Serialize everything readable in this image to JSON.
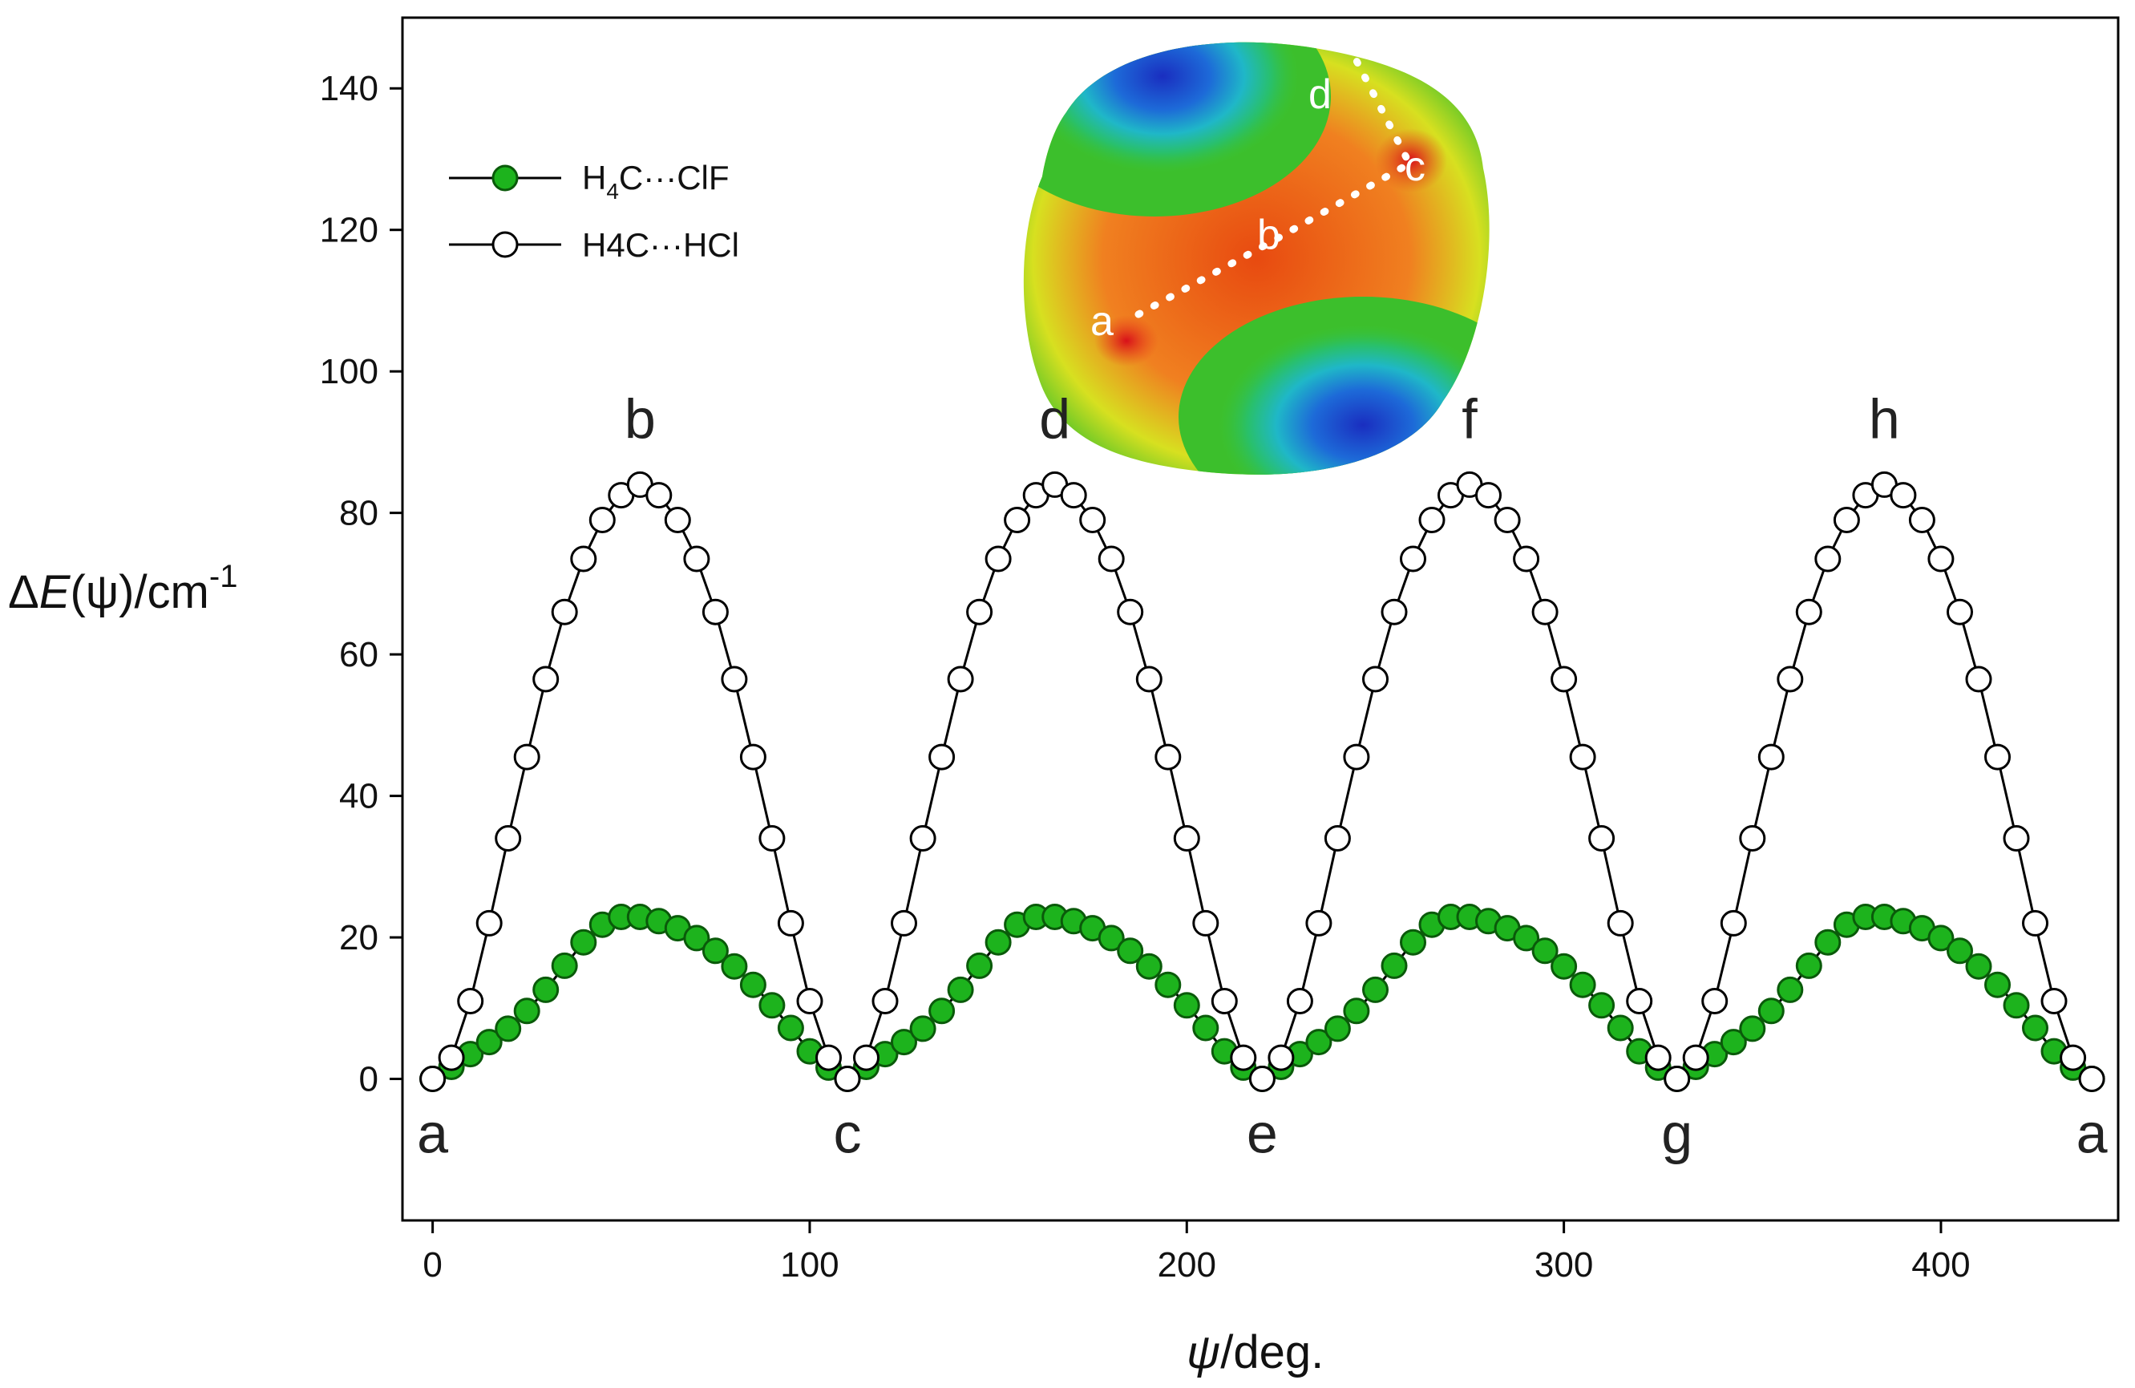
{
  "chart_data": {
    "type": "line",
    "title": "",
    "xlabel": "ψ/deg.",
    "ylabel": "ΔE(ψ)/cm-1",
    "xlim": [
      -8,
      447
    ],
    "ylim": [
      -20,
      150
    ],
    "xticks": [
      0,
      100,
      200,
      300,
      400
    ],
    "yticks": [
      0,
      20,
      40,
      60,
      80,
      100,
      120,
      140
    ],
    "grid": false,
    "legend": "top-left",
    "x": [
      0,
      5,
      10,
      15,
      20,
      25,
      30,
      35,
      40,
      45,
      50,
      55,
      60,
      65,
      70,
      75,
      80,
      85,
      90,
      95,
      100,
      105,
      110,
      115,
      120,
      125,
      130,
      135,
      140,
      145,
      150,
      155,
      160,
      165,
      170,
      175,
      180,
      185,
      190,
      195,
      200,
      205,
      210,
      215,
      220,
      225,
      230,
      235,
      240,
      245,
      250,
      255,
      260,
      265,
      270,
      275,
      280,
      285,
      290,
      295,
      300,
      305,
      310,
      315,
      320,
      325,
      330,
      335,
      340,
      345,
      350,
      355,
      360,
      365,
      370,
      375,
      380,
      385,
      390,
      395,
      400,
      405,
      410,
      415,
      420,
      425,
      430,
      435,
      440
    ],
    "series": [
      {
        "name": "H4C···ClF",
        "marker": "filled-circle",
        "color": "#1db31d",
        "values": [
          0.0,
          1.7,
          3.5,
          5.2,
          7.1,
          9.6,
          12.6,
          16.0,
          19.3,
          21.8,
          22.9,
          22.9,
          22.3,
          21.3,
          19.9,
          18.1,
          15.9,
          13.3,
          10.4,
          7.2,
          3.9,
          1.6,
          0.0,
          1.7,
          3.5,
          5.2,
          7.1,
          9.6,
          12.6,
          16.0,
          19.3,
          21.8,
          22.9,
          22.9,
          22.3,
          21.3,
          19.9,
          18.1,
          15.9,
          13.3,
          10.4,
          7.2,
          3.9,
          1.6,
          0.0,
          1.7,
          3.5,
          5.2,
          7.1,
          9.6,
          12.6,
          16.0,
          19.3,
          21.8,
          22.9,
          22.9,
          22.3,
          21.3,
          19.9,
          18.1,
          15.9,
          13.3,
          10.4,
          7.2,
          3.9,
          1.6,
          0.0,
          1.7,
          3.5,
          5.2,
          7.1,
          9.6,
          12.6,
          16.0,
          19.3,
          21.8,
          22.9,
          22.9,
          22.3,
          21.3,
          19.9,
          18.1,
          15.9,
          13.3,
          10.4,
          7.2,
          3.9,
          1.6,
          0.0
        ]
      },
      {
        "name": "H4C···HCl",
        "marker": "open-circle",
        "color": "#000000",
        "values": [
          0.0,
          3.0,
          11.0,
          22.0,
          34.0,
          45.5,
          56.5,
          66.0,
          73.5,
          79.0,
          82.5,
          84.0,
          82.5,
          79.0,
          73.5,
          66.0,
          56.5,
          45.5,
          34.0,
          22.0,
          11.0,
          3.0,
          0.0,
          3.0,
          11.0,
          22.0,
          34.0,
          45.5,
          56.5,
          66.0,
          73.5,
          79.0,
          82.5,
          84.0,
          82.5,
          79.0,
          73.5,
          66.0,
          56.5,
          45.5,
          34.0,
          22.0,
          11.0,
          3.0,
          0.0,
          3.0,
          11.0,
          22.0,
          34.0,
          45.5,
          56.5,
          66.0,
          73.5,
          79.0,
          82.5,
          84.0,
          82.5,
          79.0,
          73.5,
          66.0,
          56.5,
          45.5,
          34.0,
          22.0,
          11.0,
          3.0,
          0.0,
          3.0,
          11.0,
          22.0,
          34.0,
          45.5,
          56.5,
          66.0,
          73.5,
          79.0,
          82.5,
          84.0,
          82.5,
          79.0,
          73.5,
          66.0,
          56.5,
          45.5,
          34.0,
          22.0,
          11.0,
          3.0,
          0.0
        ]
      }
    ],
    "point_labels": [
      {
        "text": "a",
        "x": 0,
        "position": "below"
      },
      {
        "text": "b",
        "x": 55,
        "position": "above"
      },
      {
        "text": "c",
        "x": 110,
        "position": "below"
      },
      {
        "text": "d",
        "x": 165,
        "position": "above"
      },
      {
        "text": "e",
        "x": 220,
        "position": "below"
      },
      {
        "text": "f",
        "x": 275,
        "position": "above"
      },
      {
        "text": "g",
        "x": 330,
        "position": "below"
      },
      {
        "text": "h",
        "x": 385,
        "position": "above"
      },
      {
        "text": "a",
        "x": 440,
        "position": "below"
      }
    ],
    "inset": {
      "description_free": true,
      "path_labels": [
        "a",
        "b",
        "c",
        "d"
      ]
    }
  },
  "legend": {
    "item1": {
      "main": "H",
      "sub": "4",
      "rest": "C···ClF"
    },
    "item2": {
      "text": "H4C···HCl"
    }
  },
  "axes": {
    "ylabel_parts": {
      "delta": "Δ",
      "e": "E",
      "open": "(",
      "psi": "ψ",
      "close": ")/cm",
      "sup": "-1"
    },
    "xlabel_parts": {
      "psi": "ψ",
      "rest": "/deg."
    }
  },
  "colors": {
    "green_fill": "#1db31d",
    "green_stroke": "#0a5a0a",
    "open_fill": "#ffffff",
    "line": "#000000"
  }
}
